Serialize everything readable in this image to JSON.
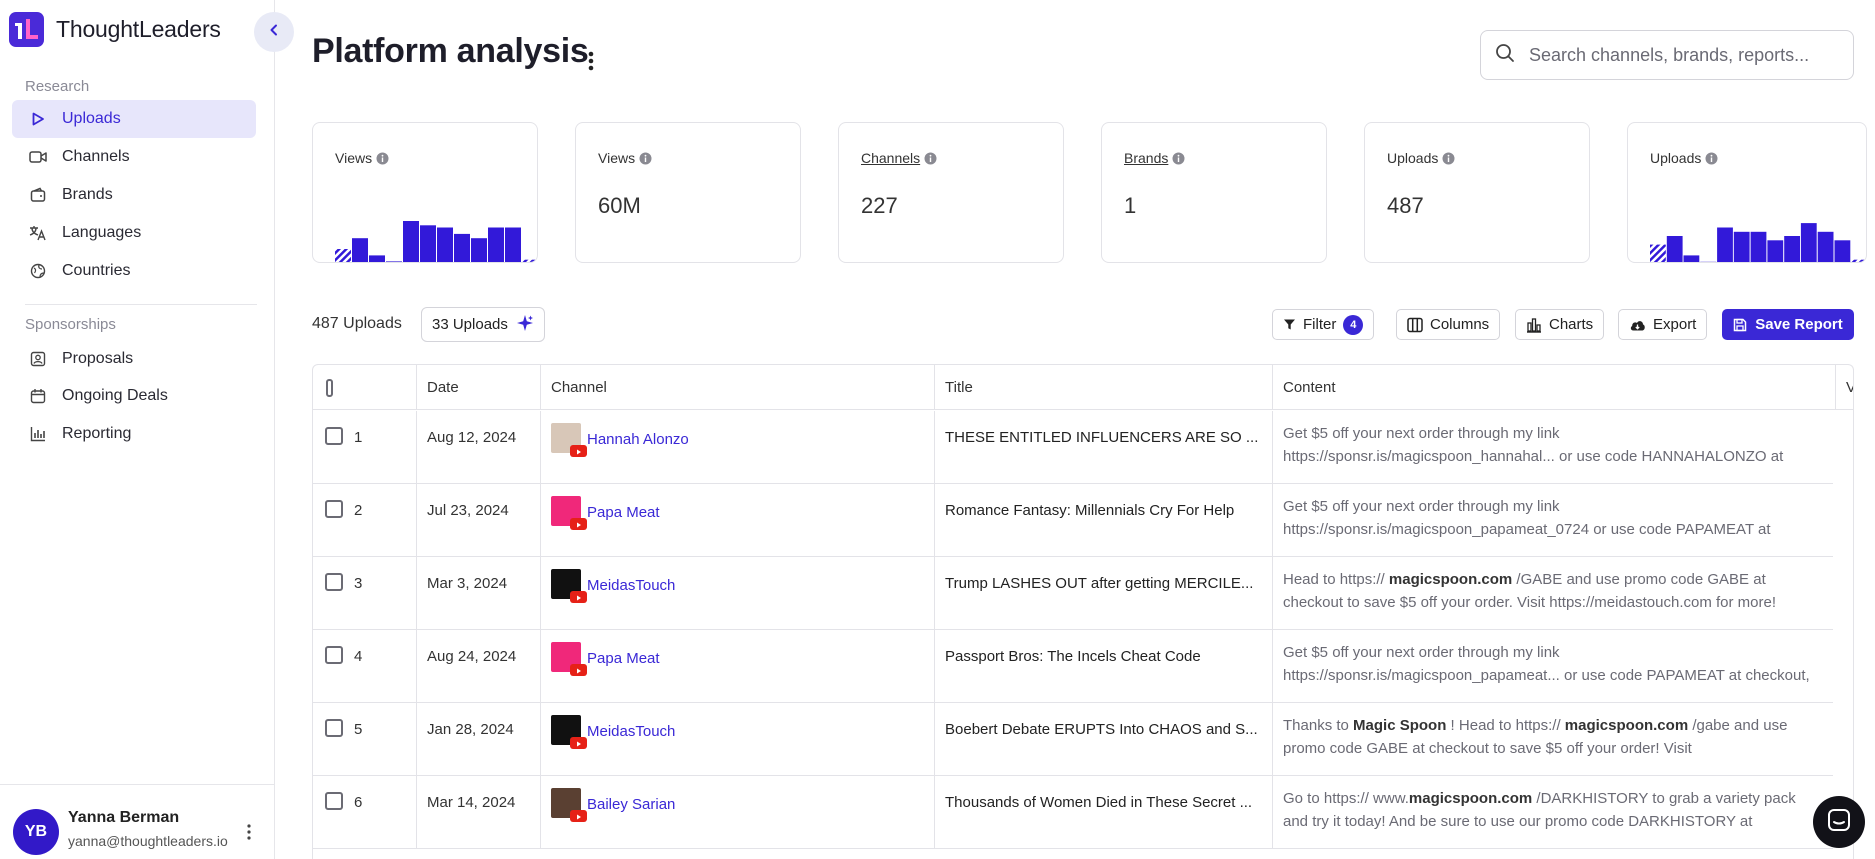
{
  "app": {
    "name": "ThoughtLeaders"
  },
  "sidebar": {
    "research_label": "Research",
    "research_items": [
      {
        "label": "Uploads",
        "icon": "play-icon",
        "active": true
      },
      {
        "label": "Channels",
        "icon": "video-icon",
        "active": false
      },
      {
        "label": "Brands",
        "icon": "wallet-icon",
        "active": false
      },
      {
        "label": "Languages",
        "icon": "translate-icon",
        "active": false
      },
      {
        "label": "Countries",
        "icon": "globe-icon",
        "active": false
      }
    ],
    "sponsorships_label": "Sponsorships",
    "sponsorship_items": [
      {
        "label": "Proposals",
        "icon": "user-card-icon"
      },
      {
        "label": "Ongoing Deals",
        "icon": "calendar-icon"
      },
      {
        "label": "Reporting",
        "icon": "bar-chart-icon"
      }
    ],
    "user": {
      "initials": "YB",
      "name": "Yanna Berman",
      "email": "yanna@thoughtleaders.io"
    }
  },
  "header": {
    "title": "Platform analysis",
    "search_placeholder": "Search channels, brands, reports..."
  },
  "cards": [
    {
      "label": "Views",
      "type": "chart",
      "link": false,
      "bars": [
        0.35,
        0.6,
        0.2,
        0.06,
        1.0,
        0.9,
        0.85,
        0.7,
        0.6,
        0.85,
        0.85,
        0.1
      ]
    },
    {
      "label": "Views",
      "type": "value",
      "link": false,
      "value": "60M"
    },
    {
      "label": "Channels",
      "type": "value",
      "link": true,
      "value": "227"
    },
    {
      "label": "Brands",
      "type": "value",
      "link": true,
      "value": "1"
    },
    {
      "label": "Uploads",
      "type": "value",
      "link": false,
      "value": "487"
    },
    {
      "label": "Uploads",
      "type": "chart",
      "link": false,
      "bars": [
        0.45,
        0.65,
        0.2,
        0.05,
        0.85,
        0.75,
        0.75,
        0.55,
        0.65,
        0.95,
        0.75,
        0.55,
        0.1
      ]
    }
  ],
  "toolbar": {
    "count_label": "487 Uploads",
    "ai_label": "33 Uploads",
    "filter_label": "Filter",
    "filter_count": "4",
    "columns_label": "Columns",
    "charts_label": "Charts",
    "export_label": "Export",
    "save_label": "Save Report"
  },
  "table": {
    "headers": {
      "date": "Date",
      "channel": "Channel",
      "title": "Title",
      "content": "Content",
      "extra": "V"
    },
    "rows": [
      {
        "num": "1",
        "date": "Aug 12, 2024",
        "channel": "Hannah Alonzo",
        "avatar_color": "#d8c7b8",
        "title": "THESE ENTITLED INFLUENCERS ARE SO ...",
        "content": [
          "Get $5 off your next order through my link https://sponsr.is/magicspoon_hannahal... or use code HANNAHALONZO at"
        ]
      },
      {
        "num": "2",
        "date": "Jul 23, 2024",
        "channel": "Papa Meat",
        "avatar_color": "#f0287a",
        "title": "Romance Fantasy: Millennials Cry For Help",
        "content": [
          "Get $5 off your next order through my link https://sponsr.is/magicspoon_papameat_0724 or use code PAPAMEAT at"
        ]
      },
      {
        "num": "3",
        "date": "Mar 3, 2024",
        "channel": "MeidasTouch",
        "avatar_color": "#111111",
        "title": "Trump LASHES OUT after getting MERCILE...",
        "content": [
          "Head to https:// ",
          "magicspoon.com",
          " /GABE and use promo code GABE at checkout to save $5 off your order. Visit https://meidastouch.com for more!"
        ]
      },
      {
        "num": "4",
        "date": "Aug 24, 2024",
        "channel": "Papa Meat",
        "avatar_color": "#f0287a",
        "title": "Passport Bros: The Incels Cheat Code",
        "content": [
          "Get $5 off your next order through my link https://sponsr.is/magicspoon_papameat... or use code PAPAMEAT at checkout,"
        ]
      },
      {
        "num": "5",
        "date": "Jan 28, 2024",
        "channel": "MeidasTouch",
        "avatar_color": "#111111",
        "title": "Boebert Debate ERUPTS Into CHAOS and S...",
        "content": [
          "Thanks to ",
          "Magic Spoon",
          " ! Head to https:// ",
          "magicspoon.com",
          " /gabe and use promo code GABE at checkout to save $5 off your order! Visit"
        ]
      },
      {
        "num": "6",
        "date": "Mar 14, 2024",
        "channel": "Bailey Sarian",
        "avatar_color": "#5a4032",
        "title": "Thousands of Women Died in These Secret ...",
        "content": [
          "Go to https:// www.",
          "magicspoon.com",
          " /DARKHISTORY to grab a variety pack and try it today! And be sure to use our promo code DARKHISTORY at"
        ]
      }
    ]
  },
  "colors": {
    "accent": "#3a28d6",
    "bar": "#3219d9",
    "active_bg": "#e7e6fb"
  }
}
